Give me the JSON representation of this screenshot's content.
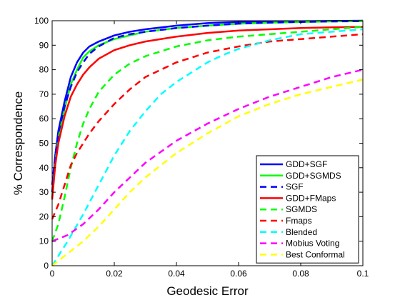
{
  "chart_data": {
    "type": "line",
    "title": "",
    "xlabel": "Geodesic Error",
    "ylabel": "% Correspondence",
    "xlim": [
      0,
      0.1
    ],
    "ylim": [
      0,
      100
    ],
    "xticks": [
      "0",
      "0.02",
      "0.04",
      "0.06",
      "0.08",
      "0.1"
    ],
    "yticks": [
      "0",
      "10",
      "20",
      "30",
      "40",
      "50",
      "60",
      "70",
      "80",
      "90",
      "100"
    ],
    "grid": false,
    "legend_position": "bottom-right",
    "series": [
      {
        "name": "GDD+SGF",
        "color": "#0000ff",
        "style": "solid",
        "x": [
          0,
          0.001,
          0.002,
          0.004,
          0.006,
          0.008,
          0.01,
          0.012,
          0.015,
          0.02,
          0.025,
          0.03,
          0.04,
          0.05,
          0.06,
          0.07,
          0.08,
          0.09,
          0.1
        ],
        "y": [
          30,
          45,
          55,
          67,
          77,
          83,
          87,
          89.5,
          91.5,
          94,
          95.5,
          96.5,
          98,
          99,
          99.5,
          99.7,
          99.8,
          99.9,
          100
        ]
      },
      {
        "name": "GDD+SGMDS",
        "color": "#00ff00",
        "style": "solid",
        "x": [
          0,
          0.001,
          0.002,
          0.004,
          0.006,
          0.008,
          0.01,
          0.012,
          0.015,
          0.02,
          0.025,
          0.03,
          0.04,
          0.05,
          0.06,
          0.07,
          0.08,
          0.09,
          0.1
        ],
        "y": [
          28,
          42,
          52,
          64,
          74,
          80,
          85,
          87.5,
          90,
          92.5,
          94,
          95.5,
          97,
          98,
          98.8,
          99.2,
          99.5,
          99.7,
          99.9
        ]
      },
      {
        "name": "SGF",
        "color": "#0000ff",
        "style": "dashed",
        "x": [
          0,
          0.001,
          0.002,
          0.004,
          0.006,
          0.008,
          0.01,
          0.012,
          0.015,
          0.02,
          0.025,
          0.03,
          0.04,
          0.05,
          0.06,
          0.07,
          0.08,
          0.09,
          0.1
        ],
        "y": [
          33,
          45,
          54,
          65,
          73,
          79,
          83,
          86.5,
          89.5,
          93,
          94.5,
          95.5,
          97,
          98,
          98.8,
          99.2,
          99.5,
          99.7,
          99.8
        ]
      },
      {
        "name": "GDD+FMaps",
        "color": "#ff0000",
        "style": "solid",
        "x": [
          0,
          0.001,
          0.002,
          0.004,
          0.006,
          0.008,
          0.01,
          0.012,
          0.015,
          0.02,
          0.025,
          0.03,
          0.04,
          0.05,
          0.06,
          0.07,
          0.08,
          0.09,
          0.1
        ],
        "y": [
          27,
          41,
          50,
          61,
          69,
          74,
          78,
          81,
          84.5,
          88,
          90,
          91.5,
          93.5,
          95,
          96,
          96.5,
          97,
          97.3,
          97.5
        ]
      },
      {
        "name": "SGMDS",
        "color": "#00ff00",
        "style": "dashed",
        "x": [
          0,
          0.002,
          0.004,
          0.006,
          0.008,
          0.01,
          0.012,
          0.015,
          0.02,
          0.025,
          0.03,
          0.04,
          0.05,
          0.06,
          0.07,
          0.08,
          0.09,
          0.1
        ],
        "y": [
          10,
          17,
          28,
          40,
          50,
          58,
          64,
          71,
          78,
          82.5,
          85.5,
          89.5,
          92,
          93.5,
          94.5,
          95.5,
          96.5,
          97.5
        ]
      },
      {
        "name": "Fmaps",
        "color": "#ff0000",
        "style": "dashed",
        "x": [
          0,
          0.002,
          0.004,
          0.006,
          0.008,
          0.01,
          0.012,
          0.015,
          0.02,
          0.025,
          0.03,
          0.04,
          0.05,
          0.06,
          0.07,
          0.08,
          0.09,
          0.1
        ],
        "y": [
          19,
          25,
          33,
          41,
          46,
          50,
          54,
          59,
          66,
          72,
          77,
          83,
          87,
          89.5,
          91.5,
          92.5,
          93.5,
          94.5
        ]
      },
      {
        "name": "Blended",
        "color": "#00ffff",
        "style": "dashed",
        "x": [
          0,
          0.002,
          0.005,
          0.01,
          0.015,
          0.02,
          0.025,
          0.03,
          0.035,
          0.04,
          0.045,
          0.05,
          0.055,
          0.06,
          0.07,
          0.08,
          0.09,
          0.1
        ],
        "y": [
          0,
          4,
          10,
          21,
          33,
          45,
          55,
          63,
          70,
          75,
          79,
          83,
          86,
          88.5,
          92,
          94.5,
          95.5,
          96.5
        ]
      },
      {
        "name": "Mobius Voting",
        "color": "#ff00ff",
        "style": "dashed",
        "x": [
          0,
          0.002,
          0.005,
          0.01,
          0.015,
          0.02,
          0.025,
          0.03,
          0.04,
          0.05,
          0.06,
          0.07,
          0.08,
          0.09,
          0.1
        ],
        "y": [
          10,
          11,
          12.5,
          17,
          23,
          30,
          36,
          42,
          51,
          58,
          64,
          69,
          73,
          77,
          80
        ]
      },
      {
        "name": "Best Conformal",
        "color": "#ffff00",
        "style": "dashed",
        "x": [
          0,
          0.002,
          0.005,
          0.01,
          0.015,
          0.02,
          0.025,
          0.03,
          0.04,
          0.05,
          0.06,
          0.07,
          0.08,
          0.09,
          0.1
        ],
        "y": [
          0,
          2,
          5,
          10,
          16,
          23,
          30,
          36,
          46,
          54,
          61,
          66,
          70,
          73,
          76
        ]
      }
    ]
  }
}
